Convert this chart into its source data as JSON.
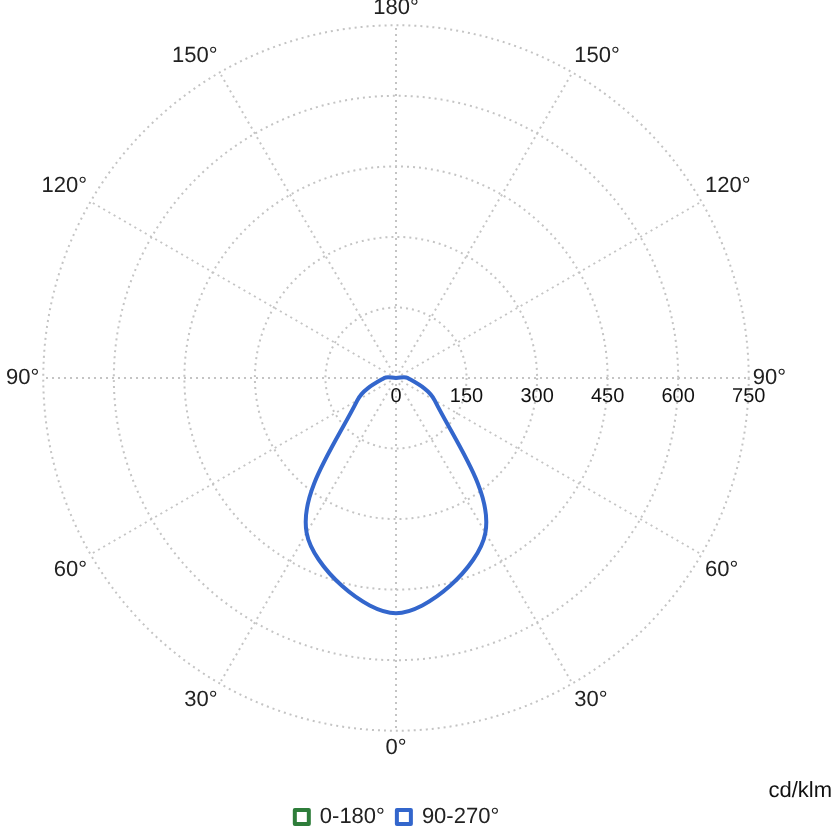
{
  "chart_data": {
    "type": "radar",
    "categories": [
      "180°",
      "150°",
      "120°",
      "90°",
      "60°",
      "30°",
      "0°",
      "30°",
      "60°",
      "90°",
      "120°",
      "150°"
    ],
    "series": [
      {
        "name": "90-270°",
        "color": "#3366cc",
        "values": [
          0,
          0,
          0,
          25,
          95,
          380,
          500,
          380,
          95,
          25,
          0,
          0
        ]
      },
      {
        "name": "0-180°",
        "color": "#2e7d3a",
        "values": [
          null,
          null,
          null,
          null,
          null,
          null,
          null,
          null,
          null,
          null,
          null,
          null
        ]
      }
    ],
    "ylim": [
      0,
      750
    ],
    "yticks": [
      0,
      150,
      300,
      450,
      600,
      750
    ],
    "ylabel": "cd/klm",
    "grid": true,
    "legend": "bottom",
    "marker": "none",
    "line_style": "solid"
  }
}
